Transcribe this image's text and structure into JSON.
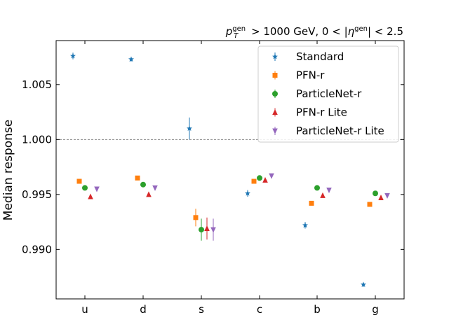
{
  "chart_data": {
    "type": "scatter",
    "title_parts": {
      "p": "p",
      "p_sup": "gen",
      "p_sub": "T",
      "gt_value": " > 1000 GeV, 0 < |",
      "eta": "η",
      "eta_sup": "gen",
      "tail": "| < 2.5"
    },
    "ylabel": "Median response",
    "xlabel": "",
    "categories": [
      "u",
      "d",
      "s",
      "c",
      "b",
      "g"
    ],
    "ylim": [
      0.9855,
      1.009
    ],
    "yticks": [
      0.99,
      0.995,
      1.0,
      1.005
    ],
    "ytick_labels": [
      "0.990",
      "0.995",
      "1.000",
      "1.005"
    ],
    "reference_line": 1.0,
    "legend_position": "top-right",
    "series": [
      {
        "name": "Standard",
        "marker": "star",
        "color": "#1f77b4",
        "values": [
          1.0076,
          1.0073,
          1.001,
          0.9951,
          0.9922,
          0.9868
        ],
        "errors": [
          0.0003,
          0.0002,
          0.001,
          0.0003,
          0.0003,
          0.0002
        ]
      },
      {
        "name": "PFN-r",
        "marker": "square",
        "color": "#ff7f0e",
        "values": [
          0.9962,
          0.9965,
          0.9929,
          0.9962,
          0.9942,
          0.9941
        ],
        "errors": [
          0.0002,
          0.0002,
          0.0008,
          0.0002,
          0.0002,
          0.0002
        ]
      },
      {
        "name": "ParticleNet-r",
        "marker": "circle",
        "color": "#2ca02c",
        "values": [
          0.9956,
          0.9959,
          0.9918,
          0.9965,
          0.9956,
          0.9951
        ],
        "errors": [
          0.0002,
          0.0002,
          0.001,
          0.0002,
          0.0002,
          0.0002
        ]
      },
      {
        "name": "PFN-r Lite",
        "marker": "triangle-up",
        "color": "#d62728",
        "values": [
          0.9948,
          0.995,
          0.9919,
          0.9963,
          0.9949,
          0.9947
        ],
        "errors": [
          0.0002,
          0.0002,
          0.001,
          0.0002,
          0.0002,
          0.0002
        ]
      },
      {
        "name": "ParticleNet-r Lite",
        "marker": "triangle-down",
        "color": "#9467bd",
        "values": [
          0.9955,
          0.9956,
          0.9918,
          0.9967,
          0.9954,
          0.9949
        ],
        "errors": [
          0.0002,
          0.0002,
          0.001,
          0.0002,
          0.0002,
          0.0002
        ]
      }
    ]
  }
}
